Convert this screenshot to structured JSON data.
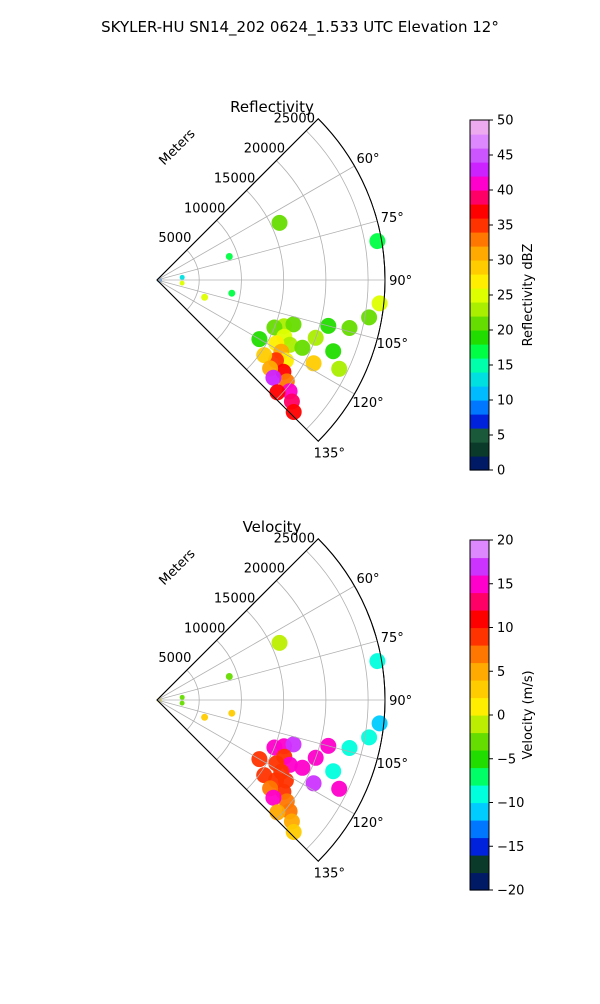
{
  "figure": {
    "title": "SKYLER-HU  SN14_202  0624_1.533 UTC Elevation 12°"
  },
  "chart_data": [
    {
      "type": "heatmap",
      "projection": "polar-sector",
      "title": "Reflectivity",
      "range_label": "Meters",
      "range_ticks": [
        5000,
        10000,
        15000,
        20000,
        25000
      ],
      "range_max": 27000,
      "azimuth_ticks": [
        "60°",
        "75°",
        "90°",
        "105°",
        "120°",
        "135°"
      ],
      "azimuth_tick_values": [
        60,
        75,
        90,
        105,
        120,
        135
      ],
      "azimuth_range": [
        45,
        135
      ],
      "grid": true,
      "colorbar": {
        "label": "Reflectivity dBZ",
        "min": 0,
        "max": 50,
        "ticks": [
          "0",
          "5",
          "10",
          "15",
          "20",
          "25",
          "30",
          "35",
          "40",
          "45",
          "50"
        ],
        "tick_values": [
          0,
          5,
          10,
          15,
          20,
          25,
          30,
          35,
          40,
          45,
          50
        ],
        "stops": [
          [
            0,
            "#001a66"
          ],
          [
            2,
            "#0a3a2a"
          ],
          [
            4,
            "#1a5a3a"
          ],
          [
            6,
            "#0022dd"
          ],
          [
            8,
            "#0077ff"
          ],
          [
            10,
            "#00bbff"
          ],
          [
            12,
            "#00e0e0"
          ],
          [
            14,
            "#00ffaa"
          ],
          [
            16,
            "#00ff44"
          ],
          [
            18,
            "#22dd00"
          ],
          [
            20,
            "#66dd00"
          ],
          [
            22,
            "#aaee00"
          ],
          [
            24,
            "#ddff00"
          ],
          [
            26,
            "#ffee00"
          ],
          [
            28,
            "#ffcc00"
          ],
          [
            30,
            "#ffaa00"
          ],
          [
            32,
            "#ff7700"
          ],
          [
            34,
            "#ff3300"
          ],
          [
            36,
            "#ff0000"
          ],
          [
            38,
            "#ff0066"
          ],
          [
            40,
            "#ff00cc"
          ],
          [
            42,
            "#cc22ff"
          ],
          [
            44,
            "#cc55ff"
          ],
          [
            46,
            "#dd88ff"
          ],
          [
            48,
            "#eeaaee"
          ],
          [
            50,
            "#ffeeff"
          ]
        ]
      },
      "echoes": [
        {
          "az": 110,
          "r": 16000,
          "v": 22
        },
        {
          "az": 108,
          "r": 17000,
          "v": 20
        },
        {
          "az": 112,
          "r": 15000,
          "v": 21
        },
        {
          "az": 114,
          "r": 16500,
          "v": 24
        },
        {
          "az": 116,
          "r": 17500,
          "v": 23
        },
        {
          "az": 118,
          "r": 16000,
          "v": 26
        },
        {
          "az": 120,
          "r": 17000,
          "v": 30
        },
        {
          "az": 122,
          "r": 18000,
          "v": 27
        },
        {
          "az": 124,
          "r": 17000,
          "v": 34
        },
        {
          "az": 126,
          "r": 18500,
          "v": 36
        },
        {
          "az": 128,
          "r": 19500,
          "v": 33
        },
        {
          "az": 130,
          "r": 20500,
          "v": 40
        },
        {
          "az": 132,
          "r": 21500,
          "v": 38
        },
        {
          "az": 134,
          "r": 22500,
          "v": 37
        },
        {
          "az": 120,
          "r": 14000,
          "v": 19
        },
        {
          "az": 115,
          "r": 19000,
          "v": 21
        },
        {
          "az": 110,
          "r": 20000,
          "v": 23
        },
        {
          "az": 105,
          "r": 21000,
          "v": 18
        },
        {
          "az": 104,
          "r": 23500,
          "v": 20
        },
        {
          "az": 100,
          "r": 25500,
          "v": 21
        },
        {
          "az": 96,
          "r": 26500,
          "v": 24
        },
        {
          "az": 118,
          "r": 21000,
          "v": 29
        },
        {
          "az": 125,
          "r": 15500,
          "v": 28
        },
        {
          "az": 128,
          "r": 17000,
          "v": 30
        },
        {
          "az": 130,
          "r": 18000,
          "v": 42
        },
        {
          "az": 133,
          "r": 19500,
          "v": 36
        },
        {
          "az": 112,
          "r": 22500,
          "v": 19
        },
        {
          "az": 116,
          "r": 24000,
          "v": 22
        },
        {
          "az": 80,
          "r": 26500,
          "v": 17
        },
        {
          "az": 65,
          "r": 16000,
          "v": 20
        },
        {
          "az": 72,
          "r": 9000,
          "v": 16
        },
        {
          "az": 84,
          "r": 3000,
          "v": 13
        },
        {
          "az": 97,
          "r": 3000,
          "v": 24
        },
        {
          "az": 100,
          "r": 9000,
          "v": 17
        },
        {
          "az": 110,
          "r": 6000,
          "v": 24
        },
        {
          "az": 92,
          "r": 300,
          "v": 9
        }
      ]
    },
    {
      "type": "heatmap",
      "projection": "polar-sector",
      "title": "Velocity",
      "range_label": "Meters",
      "range_ticks": [
        5000,
        10000,
        15000,
        20000,
        25000
      ],
      "range_max": 27000,
      "azimuth_ticks": [
        "60°",
        "75°",
        "90°",
        "105°",
        "120°",
        "135°"
      ],
      "azimuth_tick_values": [
        60,
        75,
        90,
        105,
        120,
        135
      ],
      "azimuth_range": [
        45,
        135
      ],
      "grid": true,
      "colorbar": {
        "label": "Velocity (m/s)",
        "min": -20,
        "max": 20,
        "ticks": [
          "−20",
          "−15",
          "−10",
          "−5",
          "0",
          "5",
          "10",
          "15",
          "20"
        ],
        "tick_values": [
          -20,
          -15,
          -10,
          -5,
          0,
          5,
          10,
          15,
          20
        ],
        "stops": [
          [
            -20,
            "#001a66"
          ],
          [
            -18,
            "#0a3a2a"
          ],
          [
            -16,
            "#0022dd"
          ],
          [
            -14,
            "#0077ff"
          ],
          [
            -12,
            "#00ccff"
          ],
          [
            -10,
            "#00ffdd"
          ],
          [
            -8,
            "#00ff66"
          ],
          [
            -6,
            "#22dd00"
          ],
          [
            -4,
            "#66dd00"
          ],
          [
            -2,
            "#bbee00"
          ],
          [
            0,
            "#ffee00"
          ],
          [
            2,
            "#ffcc00"
          ],
          [
            4,
            "#ffaa00"
          ],
          [
            6,
            "#ff7700"
          ],
          [
            8,
            "#ff3300"
          ],
          [
            10,
            "#ff0000"
          ],
          [
            12,
            "#ff0066"
          ],
          [
            14,
            "#ff00cc"
          ],
          [
            16,
            "#cc33ff"
          ],
          [
            18,
            "#dd88ff"
          ],
          [
            20,
            "#ffeeff"
          ]
        ]
      },
      "echoes": [
        {
          "az": 110,
          "r": 16000,
          "v": 15
        },
        {
          "az": 108,
          "r": 17000,
          "v": 16
        },
        {
          "az": 112,
          "r": 15000,
          "v": 14
        },
        {
          "az": 114,
          "r": 16500,
          "v": 9
        },
        {
          "az": 116,
          "r": 17500,
          "v": 14
        },
        {
          "az": 118,
          "r": 16000,
          "v": 9
        },
        {
          "az": 120,
          "r": 17000,
          "v": 8
        },
        {
          "az": 122,
          "r": 18000,
          "v": 9
        },
        {
          "az": 124,
          "r": 17000,
          "v": 8
        },
        {
          "az": 126,
          "r": 18500,
          "v": 9
        },
        {
          "az": 128,
          "r": 19500,
          "v": 7
        },
        {
          "az": 130,
          "r": 20500,
          "v": 6
        },
        {
          "az": 132,
          "r": 21500,
          "v": 4
        },
        {
          "az": 134,
          "r": 22500,
          "v": 2
        },
        {
          "az": 120,
          "r": 14000,
          "v": 9
        },
        {
          "az": 115,
          "r": 19000,
          "v": 14
        },
        {
          "az": 110,
          "r": 20000,
          "v": 15
        },
        {
          "az": 105,
          "r": 21000,
          "v": 15
        },
        {
          "az": 104,
          "r": 23500,
          "v": -9
        },
        {
          "az": 100,
          "r": 25500,
          "v": -10
        },
        {
          "az": 96,
          "r": 26500,
          "v": -11
        },
        {
          "az": 118,
          "r": 21000,
          "v": 16
        },
        {
          "az": 125,
          "r": 15500,
          "v": 8
        },
        {
          "az": 128,
          "r": 17000,
          "v": 7
        },
        {
          "az": 130,
          "r": 18000,
          "v": 14
        },
        {
          "az": 133,
          "r": 19500,
          "v": 5
        },
        {
          "az": 112,
          "r": 22500,
          "v": -10
        },
        {
          "az": 116,
          "r": 24000,
          "v": 15
        },
        {
          "az": 80,
          "r": 26500,
          "v": -10
        },
        {
          "az": 65,
          "r": 16000,
          "v": -2
        },
        {
          "az": 72,
          "r": 9000,
          "v": -4
        },
        {
          "az": 84,
          "r": 3000,
          "v": -3
        },
        {
          "az": 97,
          "r": 3000,
          "v": -4
        },
        {
          "az": 100,
          "r": 9000,
          "v": 3
        },
        {
          "az": 110,
          "r": 6000,
          "v": 2
        },
        {
          "az": 92,
          "r": 300,
          "v": 1
        }
      ]
    }
  ]
}
